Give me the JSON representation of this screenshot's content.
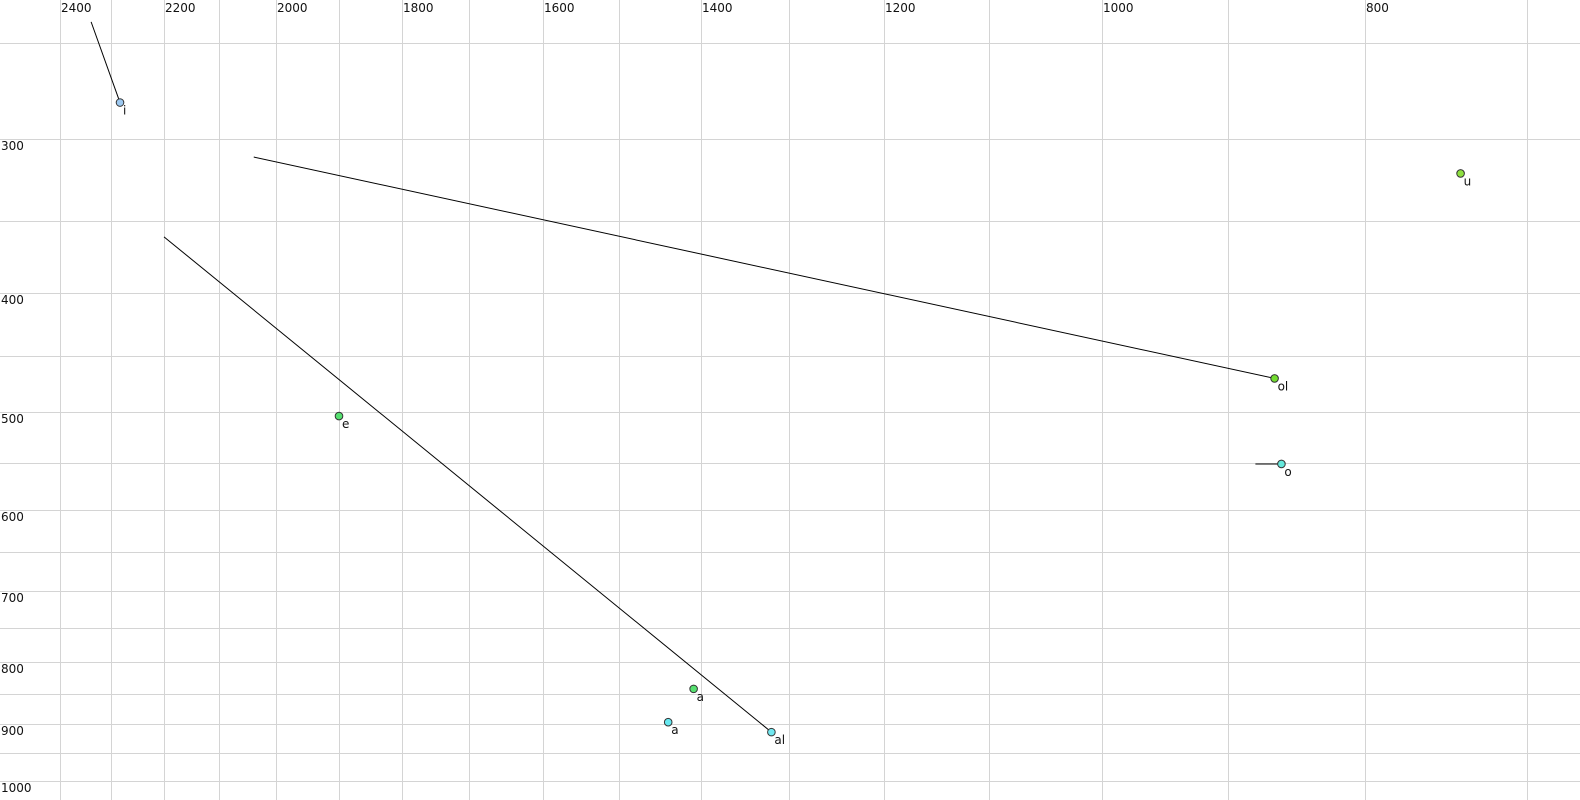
{
  "chart_data": {
    "type": "scatter",
    "title": "",
    "xlabel": "",
    "ylabel": "",
    "x_reversed": true,
    "y_reversed": true,
    "xlim": [
      2400,
      700
    ],
    "ylim": [
      250,
      1000
    ],
    "grid": true,
    "x_ticks": [
      2400,
      2200,
      2000,
      1800,
      1600,
      1400,
      1200,
      1000,
      800
    ],
    "y_ticks": [
      300,
      400,
      500,
      600,
      700,
      800,
      900,
      1000
    ],
    "points": [
      {
        "label": "i",
        "x": 2283,
        "y": 281,
        "color": "#9cc8f0",
        "trail_from": [
          2339,
          239
        ]
      },
      {
        "label": "u",
        "x": 741,
        "y": 321,
        "color": "#8ee040"
      },
      {
        "label": "ol",
        "x": 866,
        "y": 470,
        "color": "#72dc30",
        "trail_from": [
          2039,
          311
        ]
      },
      {
        "label": "o",
        "x": 861,
        "y": 551,
        "color": "#66e8dc",
        "trail_from": [
          880,
          551
        ]
      },
      {
        "label": "e",
        "x": 1900,
        "y": 504,
        "color": "#56e070"
      },
      {
        "label": "a",
        "x": 1409,
        "y": 842,
        "color": "#56e070",
        "label_color": "#666666"
      },
      {
        "label": "a",
        "x": 1440,
        "y": 897,
        "color": "#66e8f0"
      },
      {
        "label": "al",
        "x": 1320,
        "y": 914,
        "color": "#72e8f0",
        "trail_from": [
          2200,
          361
        ]
      }
    ]
  }
}
